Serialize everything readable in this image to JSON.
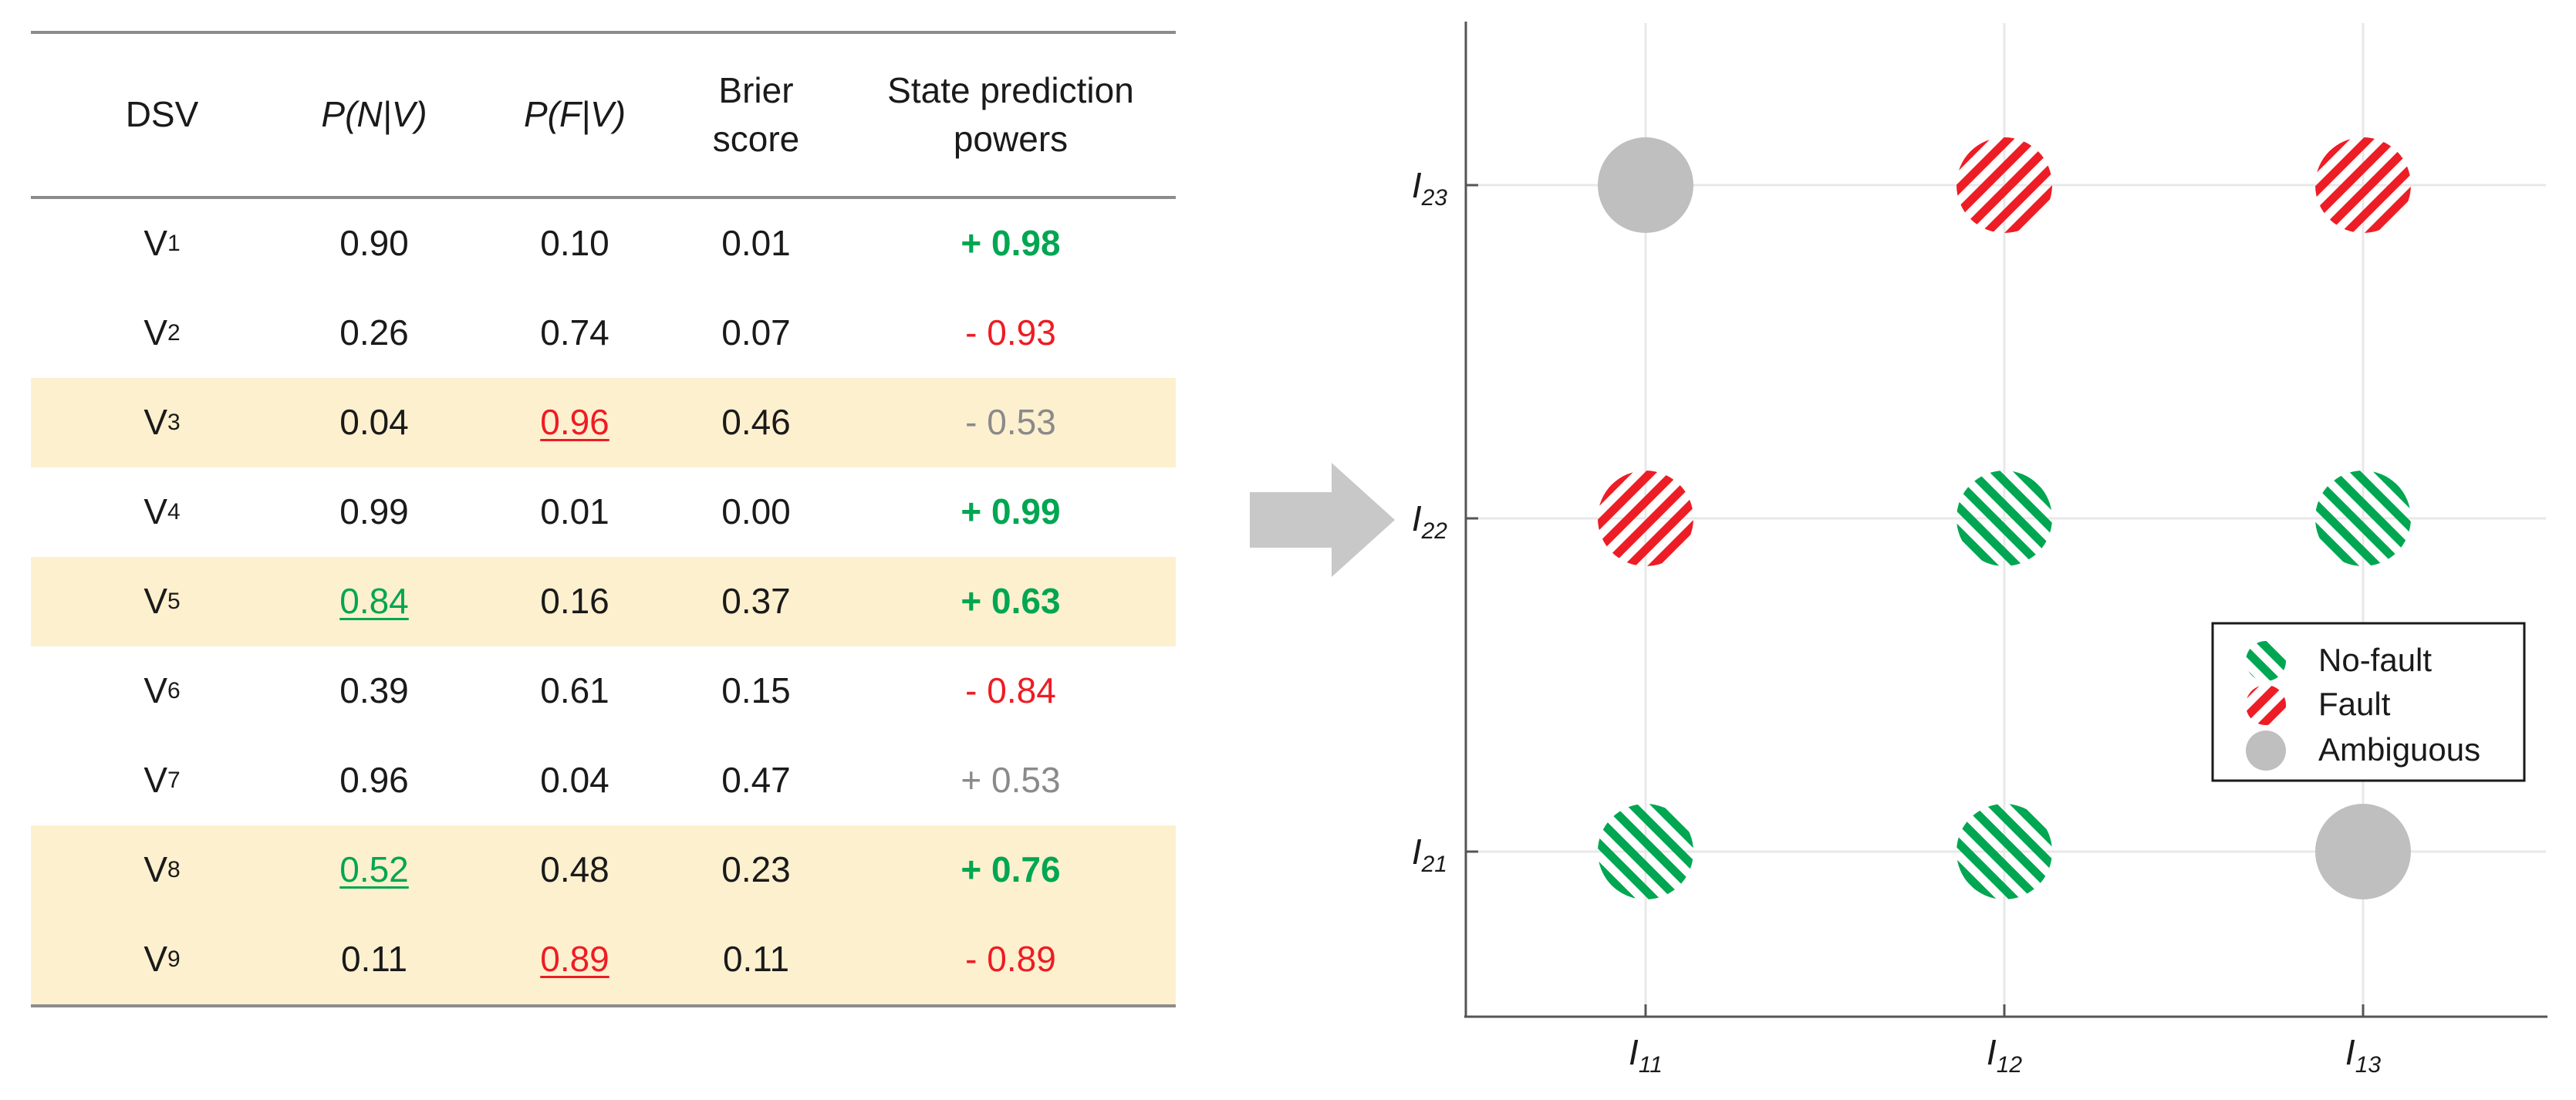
{
  "table": {
    "headers": {
      "dsv": "DSV",
      "p_n_v": "P(N|V)",
      "p_f_v": "P(F|V)",
      "brier_line1": "Brier",
      "brier_line2": "score",
      "spp_line1": "State prediction",
      "spp_line2": "powers"
    },
    "rows": [
      {
        "dsv": "V",
        "sub": "1",
        "pn": "0.90",
        "pf": "0.10",
        "brier": "0.01",
        "spp": "+ 0.98"
      },
      {
        "dsv": "V",
        "sub": "2",
        "pn": "0.26",
        "pf": "0.74",
        "brier": "0.07",
        "spp": "- 0.93"
      },
      {
        "dsv": "V",
        "sub": "3",
        "pn": "0.04",
        "pf": "0.96",
        "brier": "0.46",
        "spp": "- 0.53"
      },
      {
        "dsv": "V",
        "sub": "4",
        "pn": "0.99",
        "pf": "0.01",
        "brier": "0.00",
        "spp": "+ 0.99"
      },
      {
        "dsv": "V",
        "sub": "5",
        "pn": "0.84",
        "pf": "0.16",
        "brier": "0.37",
        "spp": "+ 0.63"
      },
      {
        "dsv": "V",
        "sub": "6",
        "pn": "0.39",
        "pf": "0.61",
        "brier": "0.15",
        "spp": "- 0.84"
      },
      {
        "dsv": "V",
        "sub": "7",
        "pn": "0.96",
        "pf": "0.04",
        "brier": "0.47",
        "spp": "+ 0.53"
      },
      {
        "dsv": "V",
        "sub": "8",
        "pn": "0.52",
        "pf": "0.48",
        "brier": "0.23",
        "spp": "+ 0.76"
      },
      {
        "dsv": "V",
        "sub": "9",
        "pn": "0.11",
        "pf": "0.89",
        "brier": "0.11",
        "spp": "- 0.89"
      }
    ]
  },
  "colors": {
    "green": "#00a651",
    "red": "#ee1c24",
    "grey": "#8a8a8a",
    "highlight": "#fdf0cf",
    "ambiguous": "#bfbfbf",
    "arrow": "#c8c8c8"
  },
  "chart": {
    "x_labels": [
      {
        "base": "I",
        "sub": "11"
      },
      {
        "base": "I",
        "sub": "12"
      },
      {
        "base": "I",
        "sub": "13"
      }
    ],
    "y_labels": [
      {
        "base": "I",
        "sub": "21"
      },
      {
        "base": "I",
        "sub": "22"
      },
      {
        "base": "I",
        "sub": "23"
      }
    ],
    "points": [
      {
        "x": "I11",
        "y": "I23",
        "state": "Ambiguous"
      },
      {
        "x": "I12",
        "y": "I23",
        "state": "Fault"
      },
      {
        "x": "I13",
        "y": "I23",
        "state": "Fault"
      },
      {
        "x": "I11",
        "y": "I22",
        "state": "Fault"
      },
      {
        "x": "I12",
        "y": "I22",
        "state": "No-fault"
      },
      {
        "x": "I13",
        "y": "I22",
        "state": "No-fault"
      },
      {
        "x": "I11",
        "y": "I21",
        "state": "No-fault"
      },
      {
        "x": "I12",
        "y": "I21",
        "state": "No-fault"
      },
      {
        "x": "I13",
        "y": "I21",
        "state": "Ambiguous"
      }
    ],
    "legend": {
      "no_fault": "No-fault",
      "fault": "Fault",
      "ambiguous": "Ambiguous"
    }
  }
}
